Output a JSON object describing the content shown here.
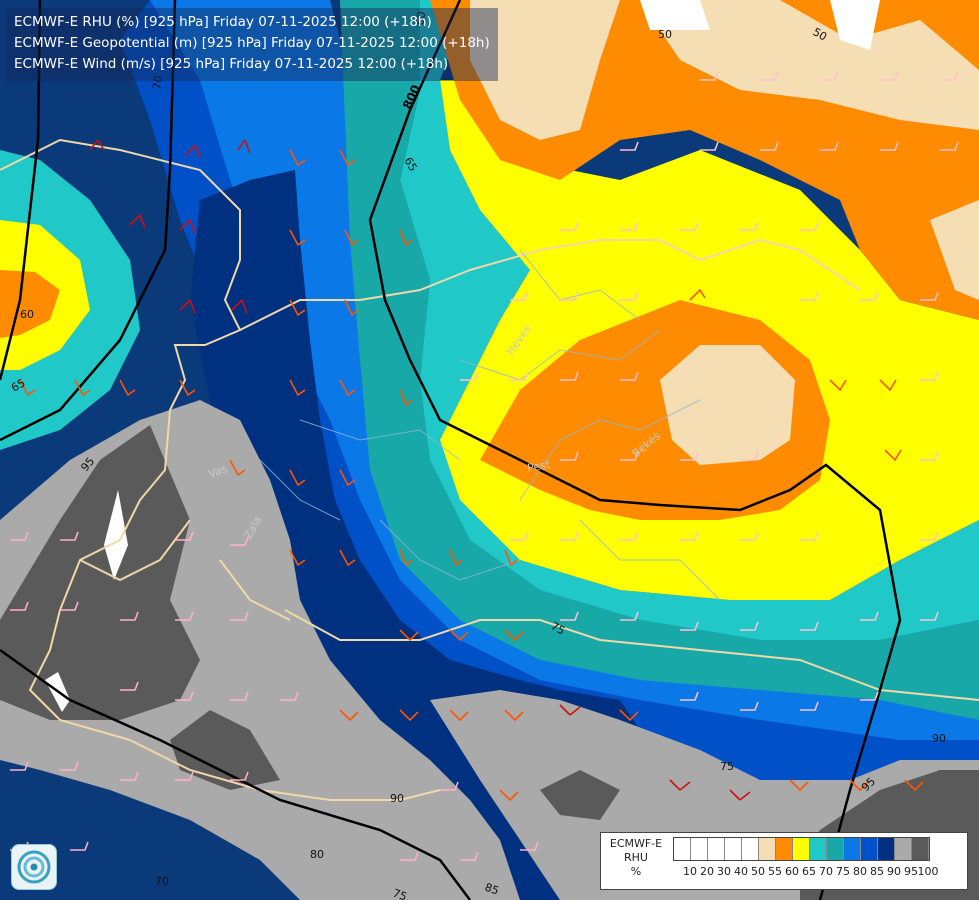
{
  "header": {
    "lines": [
      "ECMWF-E RHU (%) [925 hPa] Friday 07-11-2025 12:00 (+18h)",
      "ECMWF-E Geopotential (m) [925 hPa] Friday 07-11-2025 12:00 (+18h)",
      "ECMWF-E Wind (m/s) [925 hPa] Friday 07-11-2025 12:00 (+18h)"
    ]
  },
  "legend": {
    "title": [
      "ECMWF-E",
      "RHU",
      "%"
    ],
    "ticks": [
      "10",
      "20",
      "30",
      "40",
      "50",
      "55",
      "60",
      "65",
      "70",
      "75",
      "80",
      "85",
      "90",
      "95",
      "100"
    ],
    "colors": [
      "#ffffff",
      "#ffffff",
      "#ffffff",
      "#ffffff",
      "#ffffff",
      "#f5deb3",
      "#ff8c00",
      "#ffff00",
      "#20c8c8",
      "#18a8a8",
      "#0a78e6",
      "#0050c8",
      "#003080",
      "#aaaaaa",
      "#5a5a5a"
    ]
  },
  "contour_labels": {
    "rhu": [
      "50",
      "50",
      "60",
      "65",
      "70",
      "60",
      "65",
      "95",
      "75",
      "75",
      "90",
      "95",
      "90",
      "80",
      "70",
      "75",
      "85"
    ],
    "geopotential": [
      "800"
    ]
  },
  "place_labels": [
    "Heves",
    "Pest",
    "Békés",
    "Vas",
    "Zala"
  ],
  "logo": {
    "icon": "ecmwf-swirl-icon"
  }
}
